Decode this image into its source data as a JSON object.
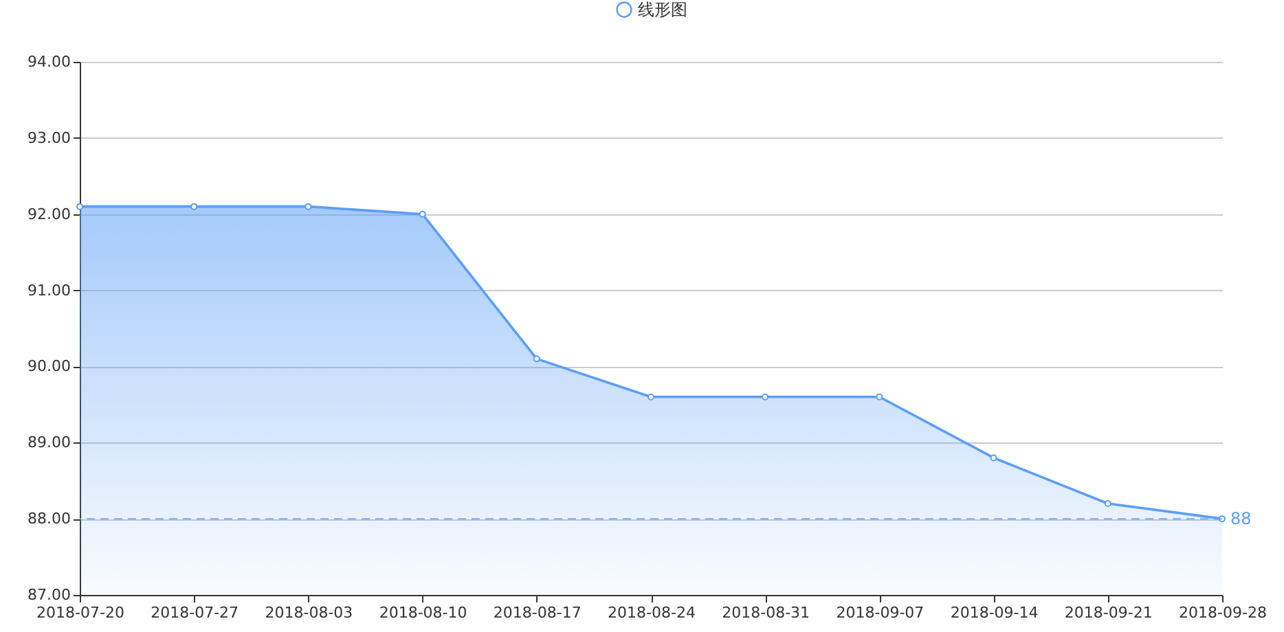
{
  "chart_data": {
    "type": "area",
    "legend": "top",
    "grid": "y",
    "marker": "circle",
    "line_style": "solid",
    "categories": [
      "2018-07-20",
      "2018-07-27",
      "2018-08-03",
      "2018-08-10",
      "2018-08-17",
      "2018-08-24",
      "2018-08-31",
      "2018-09-07",
      "2018-09-14",
      "2018-09-21",
      "2018-09-28"
    ],
    "series": [
      {
        "name": "线形图",
        "color": "#5b9ef7",
        "values": [
          92.1,
          92.1,
          92.1,
          92.0,
          90.1,
          89.6,
          89.6,
          89.6,
          88.8,
          88.2,
          88.0
        ]
      }
    ],
    "ylim": [
      87,
      94
    ],
    "yticks": [
      {
        "value": 87,
        "label": "87.00"
      },
      {
        "value": 88,
        "label": "88.00"
      },
      {
        "value": 89,
        "label": "89.00"
      },
      {
        "value": 90,
        "label": "90.00"
      },
      {
        "value": 91,
        "label": "91.00"
      },
      {
        "value": 92,
        "label": "92.00"
      },
      {
        "value": 93,
        "label": "93.00"
      },
      {
        "value": 94,
        "label": "94.00"
      }
    ],
    "ref_lines": [
      {
        "axis": "y",
        "value": 88,
        "label": "88",
        "line_style": "dashed"
      }
    ]
  }
}
